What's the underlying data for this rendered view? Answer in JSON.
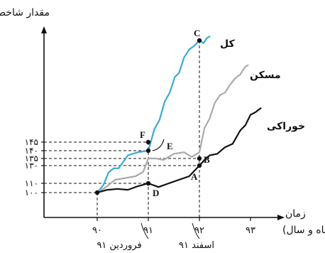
{
  "chart_data": {
    "type": "line",
    "ylabel": "مقدار شاخص‌ها",
    "xlabel": "زمان",
    "xlabel_unit": "(ماه و سال)",
    "x_ticks": [
      {
        "x": 90,
        "label": "۹۰"
      },
      {
        "x": 91,
        "label": "۹۱"
      },
      {
        "x": 92,
        "label": "۹۲"
      },
      {
        "x": 93,
        "label": "۹۳"
      }
    ],
    "y_ticks": [
      {
        "y": 100,
        "label": "۱۰۰"
      },
      {
        "y": 110,
        "label": "۱۱۰"
      },
      {
        "y": 130,
        "label": "۱۳۰"
      },
      {
        "y": 135,
        "label": "۱۳۵"
      },
      {
        "y": 140,
        "label": "۱۴۰"
      },
      {
        "y": 145,
        "label": "۱۴۵"
      }
    ],
    "xlim": [
      89.0,
      93.6
    ],
    "ylim": [
      96,
      235
    ],
    "x_annotations": [
      {
        "x": 91,
        "label": "فروردین ۹۱"
      },
      {
        "x": 92,
        "label": "اسفند ۹۱"
      }
    ],
    "series": [
      {
        "name": "کل",
        "color": "#3aaad6",
        "points": [
          [
            90,
            100
          ],
          [
            90.12,
            108
          ],
          [
            90.22,
            122
          ],
          [
            90.32,
            127
          ],
          [
            90.42,
            127
          ],
          [
            90.6,
            137
          ],
          [
            90.8,
            139
          ],
          [
            91,
            140
          ],
          [
            91.12,
            155
          ],
          [
            91.22,
            162
          ],
          [
            91.32,
            176
          ],
          [
            91.42,
            183
          ],
          [
            91.52,
            195
          ],
          [
            91.6,
            198
          ],
          [
            91.7,
            210
          ],
          [
            91.8,
            216
          ],
          [
            91.9,
            219
          ],
          [
            92,
            223
          ],
          [
            92.08,
            221
          ],
          [
            92.15,
            225
          ],
          [
            92.2,
            226
          ]
        ]
      },
      {
        "name": "مسکن",
        "color": "#aaaaaa",
        "points": [
          [
            90,
            100
          ],
          [
            90.15,
            105
          ],
          [
            90.35,
            114
          ],
          [
            90.55,
            116
          ],
          [
            90.75,
            118
          ],
          [
            90.9,
            123
          ],
          [
            91,
            135
          ],
          [
            91.15,
            135
          ],
          [
            91.3,
            134
          ],
          [
            91.5,
            138
          ],
          [
            91.7,
            139
          ],
          [
            91.85,
            136
          ],
          [
            92,
            139
          ],
          [
            92.1,
            156
          ],
          [
            92.2,
            163
          ],
          [
            92.3,
            175
          ],
          [
            92.4,
            181
          ],
          [
            92.5,
            183
          ],
          [
            92.6,
            189
          ],
          [
            92.7,
            194
          ],
          [
            92.8,
            197
          ],
          [
            92.9,
            203
          ],
          [
            92.95,
            204
          ]
        ]
      },
      {
        "name": "خوراکی",
        "color": "#111111",
        "points": [
          [
            90,
            100
          ],
          [
            90.2,
            103
          ],
          [
            90.4,
            104
          ],
          [
            90.6,
            103
          ],
          [
            90.8,
            107
          ],
          [
            91,
            110
          ],
          [
            91.2,
            106
          ],
          [
            91.4,
            110
          ],
          [
            91.6,
            114
          ],
          [
            91.8,
            118
          ],
          [
            92,
            130
          ],
          [
            92.1,
            134
          ],
          [
            92.2,
            137
          ],
          [
            92.35,
            138
          ],
          [
            92.5,
            142
          ],
          [
            92.65,
            144
          ],
          [
            92.8,
            154
          ],
          [
            92.9,
            158
          ],
          [
            93,
            166
          ],
          [
            93.1,
            168
          ],
          [
            93.2,
            171
          ]
        ]
      }
    ],
    "reference_points": [
      {
        "label": "C",
        "x": 92,
        "y": 223
      },
      {
        "label": "F",
        "x": 91,
        "y": 145
      },
      {
        "label": "E",
        "x": 91,
        "y": 140
      },
      {
        "label": "B",
        "x": 92,
        "y": 135
      },
      {
        "label": "A",
        "x": 92,
        "y": 130
      },
      {
        "label": "D",
        "x": 91,
        "y": 110
      }
    ],
    "series_labels": [
      {
        "series": "کل",
        "text": "کل"
      },
      {
        "series": "مسکن",
        "text": "مسکن"
      },
      {
        "series": "خوراکی",
        "text": "خوراکی"
      }
    ],
    "grid": false
  }
}
